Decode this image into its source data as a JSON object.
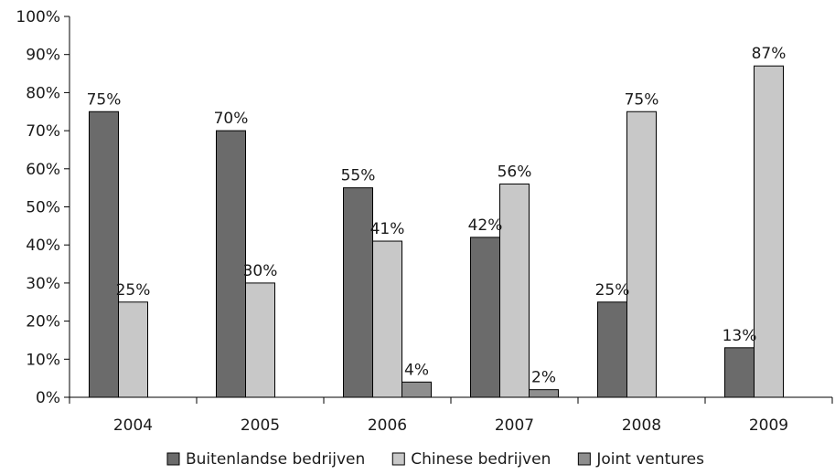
{
  "chart_data": {
    "type": "bar",
    "categories": [
      "2004",
      "2005",
      "2006",
      "2007",
      "2008",
      "2009"
    ],
    "series": [
      {
        "name": "Buitenlandse bedrijven",
        "values": [
          75,
          70,
          55,
          42,
          25,
          13
        ],
        "color": "#6b6b6b"
      },
      {
        "name": "Chinese bedrijven",
        "values": [
          25,
          30,
          41,
          56,
          75,
          87
        ],
        "color": "#c8c8c8"
      },
      {
        "name": "Joint ventures",
        "values": [
          null,
          null,
          4,
          2,
          null,
          null
        ],
        "color": "#8e8e8e"
      }
    ],
    "data_labels": [
      [
        "75%",
        "70%",
        "55%",
        "42%",
        "25%",
        "13%"
      ],
      [
        "25%",
        "30%",
        "41%",
        "56%",
        "75%",
        "87%"
      ],
      [
        null,
        null,
        "4%",
        "2%",
        null,
        null
      ]
    ],
    "yticks": [
      "0%",
      "10%",
      "20%",
      "30%",
      "40%",
      "50%",
      "60%",
      "70%",
      "80%",
      "90%",
      "100%"
    ],
    "ylim": [
      0,
      100
    ],
    "grid": false,
    "legend_position": "bottom"
  }
}
